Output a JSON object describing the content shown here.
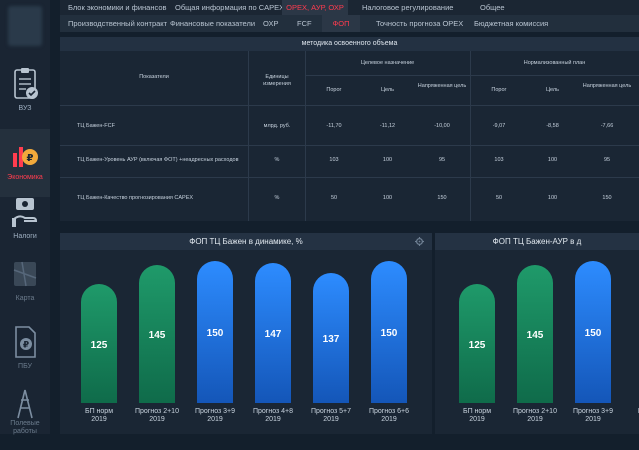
{
  "sidebar": {
    "items": [
      {
        "label": "ВУЗ",
        "icon": "clipboard-check-icon"
      },
      {
        "label": "Экономика",
        "icon": "ruble-chart-icon"
      },
      {
        "label": "Налоги",
        "icon": "money-hand-icon"
      },
      {
        "label": "Карта",
        "icon": "map-icon"
      },
      {
        "label": "ПБУ",
        "icon": "ruble-document-icon"
      },
      {
        "label": "Полевые работы",
        "icon": "oil-rig-icon"
      }
    ]
  },
  "top_tabs": [
    "Блок экономики и финансов",
    "Общая информация по CAPEX",
    "OPEX, АУР, ОХР",
    "Налоговое регулирование",
    "Общее"
  ],
  "sub_tabs": [
    "Производственный контракт",
    "Финансовые показатели",
    "ОХР",
    "FCF",
    "ФОП",
    "Точность прогноза OPEX",
    "Бюджетная комиссия"
  ],
  "table": {
    "title": "методика освоенного объема",
    "col_indicator": "Показатели",
    "col_units": "Единицы измерения",
    "group_target": "Целевое назначение",
    "group_norm": "Нормализованный план",
    "subcols": [
      "Порог",
      "Цель",
      "Напряженная цель",
      "Порог",
      "Цель",
      "Напряженная цель"
    ],
    "rows": [
      {
        "name": "ТЦ Бажен-FCF",
        "unit": "млрд. руб.",
        "values": [
          "-11,70",
          "-11,12",
          "-10,00",
          "-9,07",
          "-8,58",
          "-7,66"
        ]
      },
      {
        "name": "ТЦ Бажен-Уровень АУР (включая ФОТ) +неадресных расходов",
        "unit": "%",
        "values": [
          "103",
          "100",
          "95",
          "103",
          "100",
          "95"
        ]
      },
      {
        "name": "ТЦ Бажен-Качество прогнозирования CAPEX",
        "unit": "%",
        "values": [
          "50",
          "100",
          "150",
          "50",
          "100",
          "150"
        ]
      }
    ]
  },
  "chart_left": {
    "title": "ФОП ТЦ Бажен в динамике, %"
  },
  "chart_right": {
    "title": "ФОП ТЦ Бажен-АУР в д"
  },
  "chart_data": [
    {
      "type": "bar",
      "title": "ФОП ТЦ Бажен в динамике, %",
      "categories": [
        "БП норм 2019",
        "Прогноз 2+10 2019",
        "Прогноз 3+9 2019",
        "Прогноз 4+8 2019",
        "Прогноз 5+7 2019",
        "Прогноз 6+6 2019"
      ],
      "values": [
        125,
        145,
        150,
        147,
        137,
        150
      ],
      "colors": [
        "#1a8f62",
        "#1a8f62",
        "#1f78e8",
        "#1f78e8",
        "#1f78e8",
        "#1f78e8"
      ]
    },
    {
      "type": "bar",
      "title": "ФОП ТЦ Бажен-АУР в д",
      "categories": [
        "БП норм 2019",
        "Прогноз 2+10 2019",
        "Прогноз 3+9 2019",
        "Прогноз"
      ],
      "values": [
        125,
        145,
        150,
        null
      ],
      "colors": [
        "#1a8f62",
        "#1a8f62",
        "#1f78e8",
        "#1f78e8"
      ]
    }
  ]
}
